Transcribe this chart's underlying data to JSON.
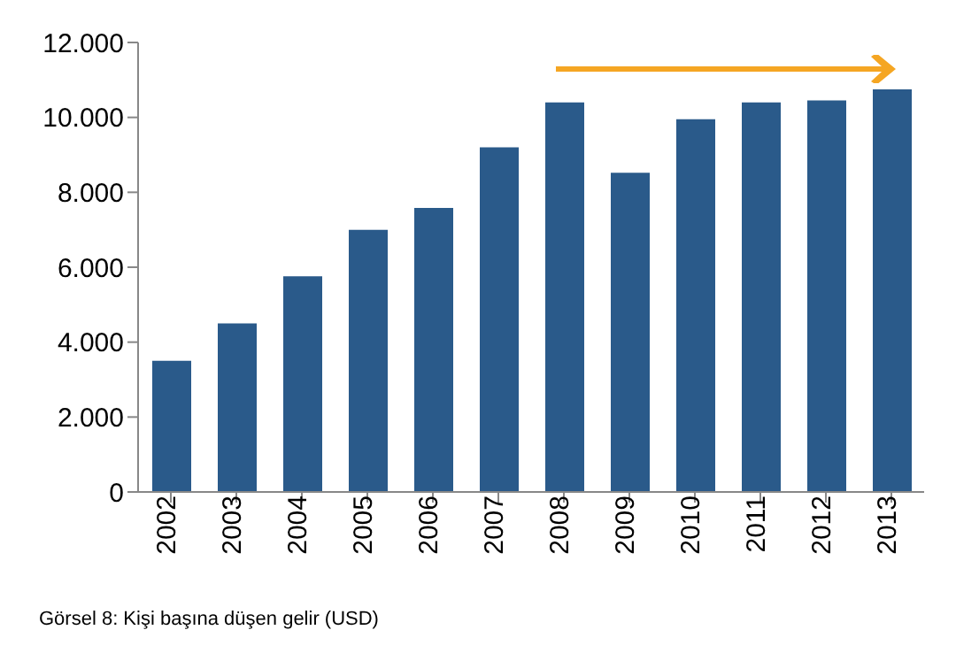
{
  "chart_data": {
    "type": "bar",
    "categories": [
      "2002",
      "2003",
      "2004",
      "2005",
      "2006",
      "2007",
      "2008",
      "2009",
      "2010",
      "2011",
      "2012",
      "2013"
    ],
    "values": [
      3500,
      4500,
      5760,
      7000,
      7580,
      9200,
      10400,
      8520,
      9950,
      10400,
      10450,
      10750
    ],
    "color": "#2a5a8a",
    "ylim": [
      0,
      12000
    ],
    "yticks": [
      {
        "value": 0,
        "label": "0"
      },
      {
        "value": 2000,
        "label": "2.000"
      },
      {
        "value": 4000,
        "label": "4.000"
      },
      {
        "value": 6000,
        "label": "6.000"
      },
      {
        "value": 8000,
        "label": "8.000"
      },
      {
        "value": 10000,
        "label": "10.000"
      },
      {
        "value": 12000,
        "label": "12.000"
      }
    ],
    "grid": false,
    "legend": false,
    "annotations": [
      "Görsel 8: Kişi başına düşen gelir (USD)"
    ]
  }
}
